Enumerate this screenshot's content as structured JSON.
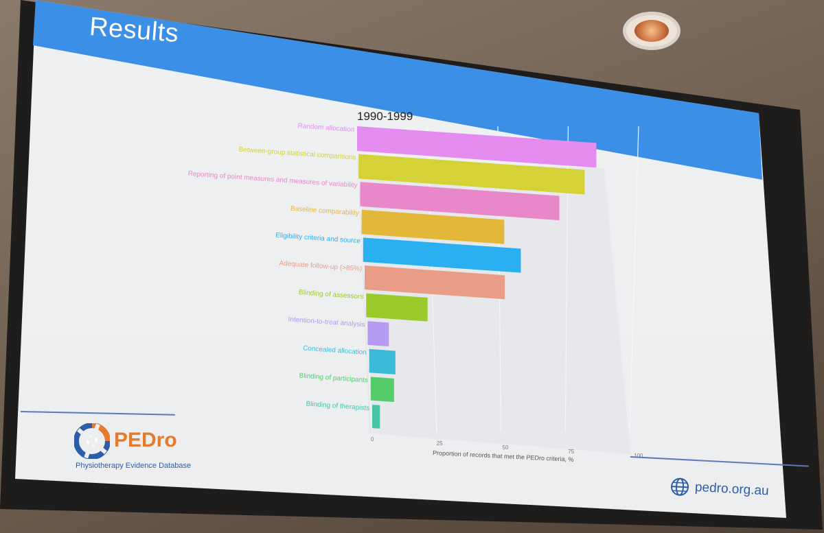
{
  "slide": {
    "title": "Results",
    "website": "pedro.org.au"
  },
  "logo": {
    "name": "PEDro",
    "tagline": "Physiotherapy Evidence Database"
  },
  "chart_data": {
    "type": "bar",
    "orientation": "horizontal",
    "title": "1990-1999",
    "xlabel": "Proportion of records that met the PEDro criteria, %",
    "ylabel": "",
    "xlim": [
      0,
      100
    ],
    "xticks": [
      0,
      25,
      50,
      75,
      100
    ],
    "grid": true,
    "legend": "none",
    "categories": [
      "Random allocation",
      "Between-group statistical comparisons",
      "Reporting of point measures and measures of variability",
      "Baseline comparability",
      "Eligibility criteria and source",
      "Adequate follow-up (>85%)",
      "Blinding of assessors",
      "Intention-to-treat analysis",
      "Concealed allocation",
      "Blinding of participants",
      "Blinding of therapists"
    ],
    "values": [
      85,
      81,
      72,
      52,
      58,
      52,
      23,
      8,
      10,
      9,
      3
    ],
    "colors": [
      "#e58cf0",
      "#d4d236",
      "#e888c8",
      "#e3b83a",
      "#2ab0f0",
      "#e99d86",
      "#9acb2a",
      "#b49af0",
      "#3bbbd8",
      "#55cc6a",
      "#45c4a6"
    ]
  }
}
